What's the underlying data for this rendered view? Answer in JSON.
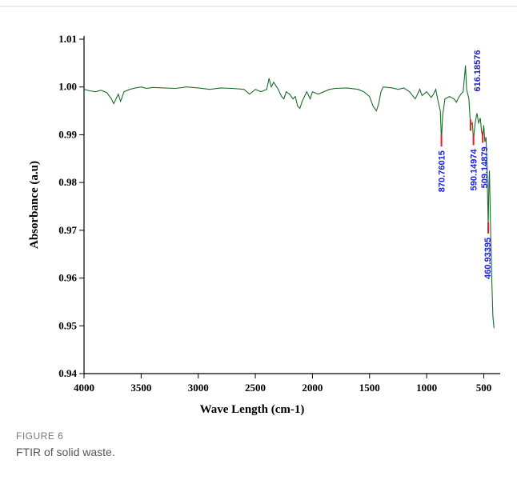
{
  "chart_data": {
    "type": "line",
    "xlabel": "Wave Length (cm-1)",
    "ylabel": "Absorbance (a.u)",
    "color": "#1f6b2c",
    "xlim": [
      4000,
      370
    ],
    "ylim": [
      0.94,
      1.01
    ],
    "xticks": [
      4000,
      3500,
      3000,
      2500,
      2000,
      1500,
      1000,
      500
    ],
    "yticks": [
      0.94,
      0.95,
      0.96,
      0.97,
      0.98,
      0.99,
      {
        "value": 1,
        "label": "1.00"
      },
      1.01
    ],
    "x": [
      4000,
      3950,
      3900,
      3850,
      3800,
      3760,
      3740,
      3720,
      3700,
      3680,
      3650,
      3600,
      3550,
      3500,
      3450,
      3400,
      3300,
      3200,
      3100,
      3000,
      2900,
      2800,
      2700,
      2600,
      2550,
      2500,
      2450,
      2400,
      2380,
      2360,
      2340,
      2300,
      2270,
      2250,
      2230,
      2200,
      2170,
      2150,
      2130,
      2110,
      2090,
      2050,
      2020,
      2000,
      1950,
      1900,
      1850,
      1800,
      1700,
      1600,
      1550,
      1500,
      1470,
      1440,
      1420,
      1400,
      1380,
      1300,
      1250,
      1200,
      1150,
      1100,
      1060,
      1040,
      1000,
      960,
      940,
      920,
      900,
      880,
      870.76015,
      860,
      840,
      800,
      760,
      740,
      720,
      700,
      680,
      660,
      650,
      630,
      616.18576,
      600,
      590.14974,
      575,
      560,
      545,
      530,
      520,
      509.14879,
      500,
      490,
      480,
      470,
      460.93395,
      455,
      450,
      440,
      430,
      420,
      410
    ],
    "values": [
      0.9995,
      0.9992,
      0.999,
      0.9993,
      0.9988,
      0.9975,
      0.9965,
      0.9975,
      0.9985,
      0.997,
      0.999,
      0.9995,
      0.9998,
      1.0,
      0.9997,
      0.9999,
      0.9998,
      0.9997,
      1.0,
      0.9998,
      0.9995,
      0.9998,
      0.9997,
      0.9995,
      0.9985,
      0.9995,
      0.999,
      0.9995,
      1.0018,
      1.0,
      1.001,
      0.9995,
      0.998,
      0.9975,
      0.999,
      0.9985,
      0.9975,
      0.998,
      0.996,
      0.9955,
      0.997,
      0.999,
      0.9975,
      0.999,
      0.9985,
      0.999,
      0.9995,
      0.9997,
      0.9998,
      0.9995,
      0.999,
      0.998,
      0.996,
      0.995,
      0.9965,
      0.999,
      1.0,
      0.9998,
      0.9995,
      0.9998,
      0.999,
      0.9975,
      0.9995,
      0.9982,
      0.999,
      0.9978,
      0.9985,
      0.9995,
      0.997,
      0.995,
      0.9887,
      0.994,
      0.9975,
      0.998,
      0.9975,
      0.9968,
      0.9978,
      0.9985,
      0.999,
      1.0045,
      0.9995,
      0.9975,
      0.992,
      0.9925,
      0.989,
      0.9925,
      0.9945,
      0.9925,
      0.9935,
      0.9908,
      0.9895,
      0.992,
      0.9885,
      0.9895,
      0.982,
      0.9705,
      0.9795,
      0.9825,
      0.97,
      0.96,
      0.952,
      0.9495
    ],
    "annotations": [
      {
        "text": "870.76015",
        "x": 870.76015,
        "y": 0.9887
      },
      {
        "text": "616.18576",
        "x": 616.18576,
        "y": 0.992
      },
      {
        "text": "590.14974",
        "x": 590.14974,
        "y": 0.989
      },
      {
        "text": "509.14879",
        "x": 509.14879,
        "y": 0.9895
      },
      {
        "text": "460.93395",
        "x": 460.93395,
        "y": 0.9705
      }
    ]
  },
  "caption": {
    "label": "FIGURE 6",
    "text": "FTIR of solid waste."
  }
}
